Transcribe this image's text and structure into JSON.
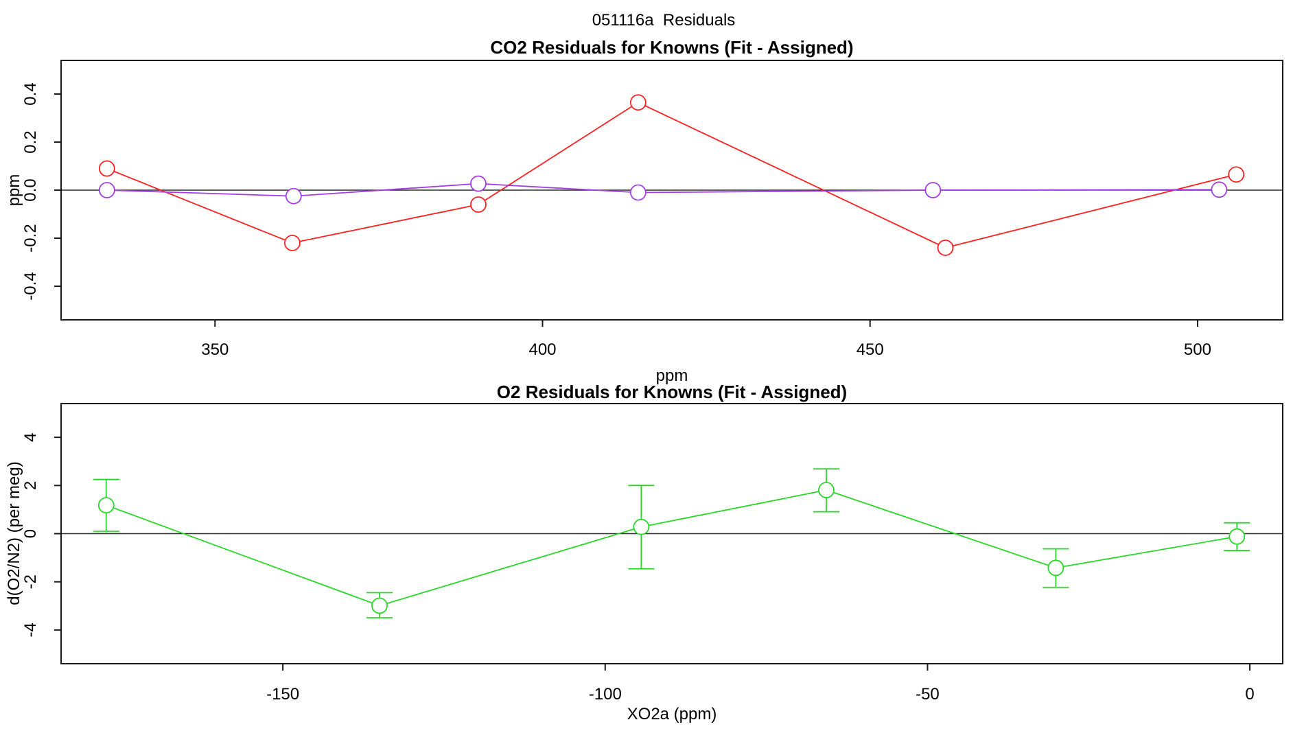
{
  "figure": {
    "title": "051116a  Residuals",
    "background": "#ffffff",
    "frame_color": "#1a1a1a",
    "zero_line_color": "#2b2b2b"
  },
  "chart_data": [
    {
      "type": "line",
      "title": "CO2 Residuals for Knowns (Fit - Assigned)",
      "xlabel": "ppm",
      "ylabel": "ppm",
      "xlim": [
        326.5,
        513.0
      ],
      "ylim": [
        -0.54,
        0.54
      ],
      "xticks": [
        350,
        400,
        450,
        500
      ],
      "xtick_labels": [
        "350",
        "400",
        "450",
        "500"
      ],
      "yticks": [
        -0.4,
        -0.2,
        0.0,
        0.2,
        0.4
      ],
      "ytick_labels": [
        "-0.4",
        "-0.2",
        "0.0",
        "0.2",
        "0.4"
      ],
      "grid": false,
      "legend": null,
      "zero_line": 0,
      "series": [
        {
          "name": "co2-residual-red",
          "color": "#FF2020",
          "marker": "open-circle",
          "x": [
            333.5,
            361.8,
            390.2,
            414.6,
            461.5,
            505.9
          ],
          "y": [
            0.09,
            -0.22,
            -0.06,
            0.365,
            -0.24,
            0.065
          ]
        },
        {
          "name": "co2-residual-purple",
          "color": "#A43BE8",
          "marker": "open-circle",
          "x": [
            333.5,
            362.0,
            390.2,
            414.6,
            459.6,
            503.3
          ],
          "y": [
            0.0,
            -0.025,
            0.027,
            -0.01,
            0.0,
            0.002
          ]
        }
      ]
    },
    {
      "type": "line",
      "title": "O2 Residuals for Knowns (Fit - Assigned)",
      "xlabel": "XO2a (ppm)",
      "ylabel": "d(O2/N2) (per meg)",
      "xlim": [
        -184.4,
        5.1
      ],
      "ylim": [
        -5.4,
        5.4
      ],
      "xticks": [
        -150,
        -100,
        -50,
        0
      ],
      "xtick_labels": [
        "-150",
        "-100",
        "-50",
        "0"
      ],
      "yticks": [
        -4,
        -2,
        0,
        2,
        4
      ],
      "ytick_labels": [
        "-4",
        "-2",
        "0",
        "2",
        "4"
      ],
      "grid": false,
      "legend": null,
      "zero_line": 0,
      "series": [
        {
          "name": "o2-residual-green",
          "color": "#28D828",
          "marker": "open-circle",
          "x": [
            -177.4,
            -135.0,
            -94.4,
            -65.7,
            -30.1,
            -2.0
          ],
          "y": [
            1.18,
            -2.99,
            0.28,
            1.81,
            -1.42,
            -0.12
          ],
          "err_lo": [
            0.1,
            -3.49,
            -1.46,
            0.91,
            -2.23,
            -0.7
          ],
          "err_hi": [
            2.25,
            -2.45,
            2.0,
            2.69,
            -0.63,
            0.45
          ]
        }
      ]
    }
  ]
}
